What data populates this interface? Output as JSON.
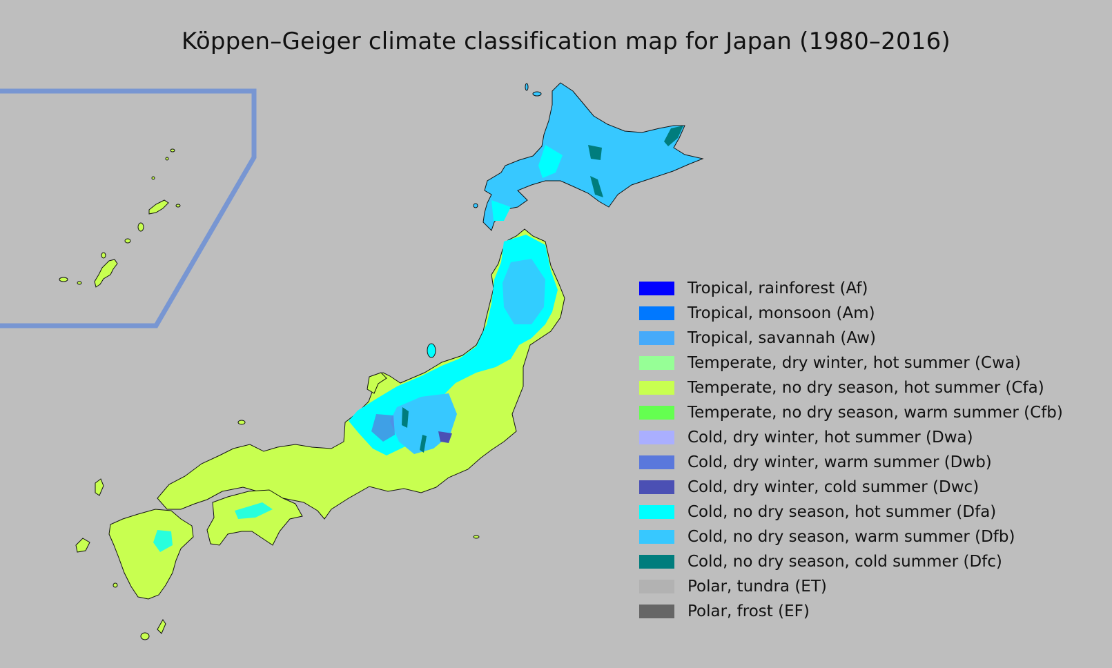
{
  "title": "Köppen–Geiger climate classification map for Japan (1980–2016)",
  "legend": [
    {
      "label": "Tropical, rainforest (Af)",
      "color": "#0000ff"
    },
    {
      "label": "Tropical, monsoon (Am)",
      "color": "#0078ff"
    },
    {
      "label": "Tropical, savannah (Aw)",
      "color": "#46aafa"
    },
    {
      "label": "Temperate, dry winter, hot summer (Cwa)",
      "color": "#96ff96"
    },
    {
      "label": "Temperate, no dry season, hot summer (Cfa)",
      "color": "#c8ff50"
    },
    {
      "label": "Temperate, no dry season, warm summer (Cfb)",
      "color": "#64ff50"
    },
    {
      "label": "Cold, dry winter, hot summer (Dwa)",
      "color": "#aaafff"
    },
    {
      "label": "Cold, dry winter, warm summer (Dwb)",
      "color": "#5a78dc"
    },
    {
      "label": "Cold, dry winter, cold summer (Dwc)",
      "color": "#4b50b4"
    },
    {
      "label": "Cold, no dry season, hot summer (Dfa)",
      "color": "#00ffff"
    },
    {
      "label": "Cold, no dry season, warm summer (Dfb)",
      "color": "#37c8ff"
    },
    {
      "label": "Cold, no dry season, cold summer (Dfc)",
      "color": "#007d7d"
    },
    {
      "label": "Polar, tundra (ET)",
      "color": "#b2b2b2"
    },
    {
      "label": "Polar, frost (EF)",
      "color": "#666666"
    }
  ],
  "colors": {
    "background": "#bebebe",
    "inset_border": "#7896d2",
    "coast": "#111111"
  }
}
